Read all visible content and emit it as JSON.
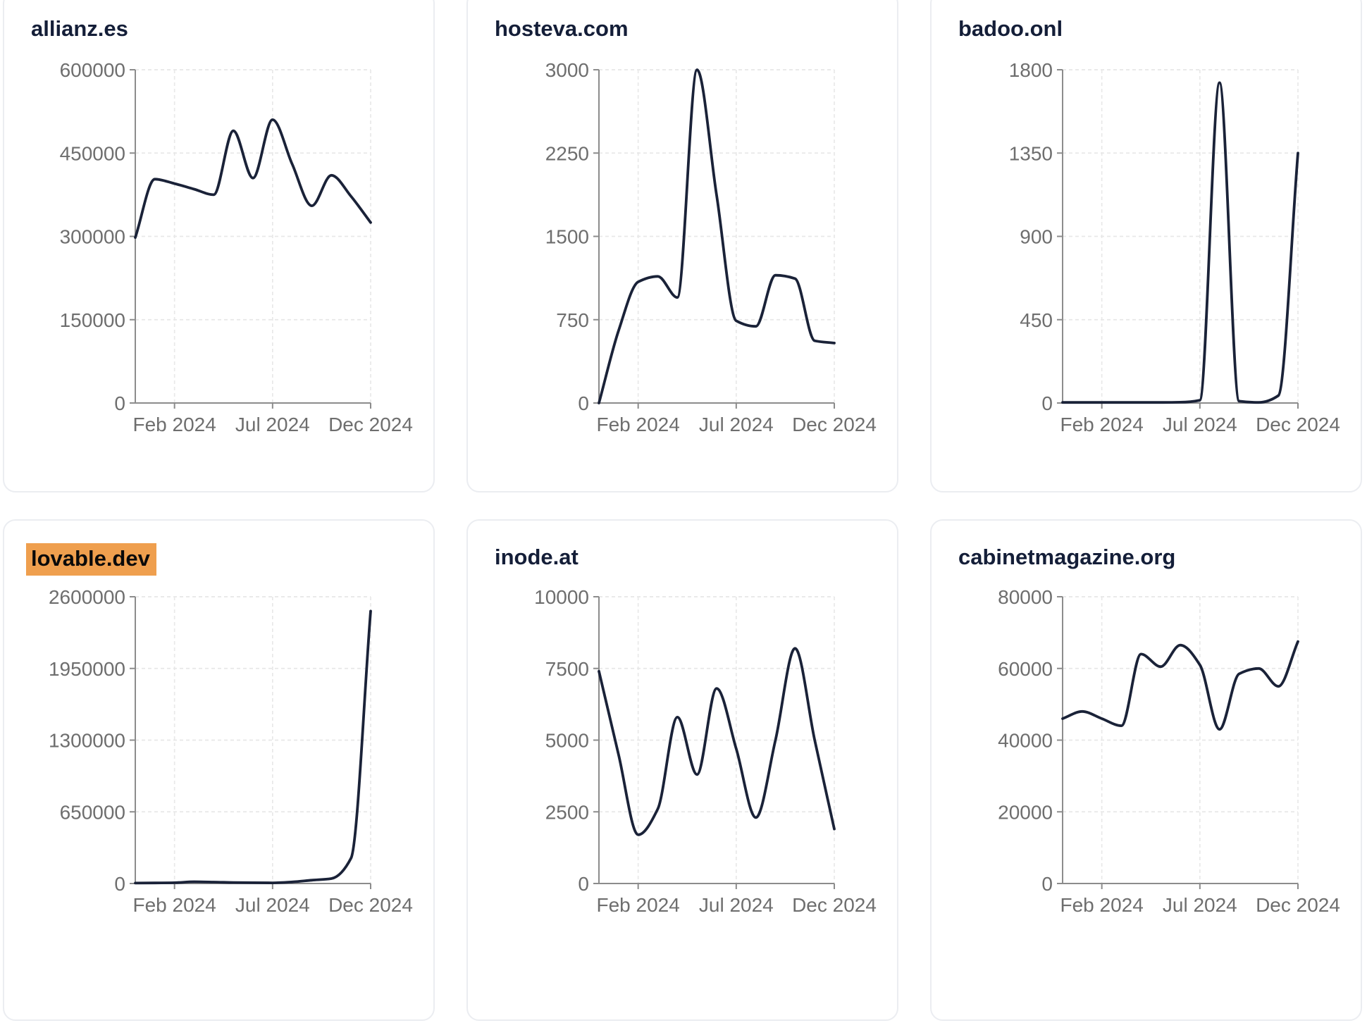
{
  "page": {
    "background": "#ffffff"
  },
  "colors": {
    "background": "#ffffff",
    "card_border": "#ebedf1",
    "title": "#141e38",
    "line": "#1a2238",
    "axis": "#8c8c8c",
    "grid": "#e8e8e8",
    "tick_label": "#6e6e6e",
    "highlight": "#ef9f4e"
  },
  "x_axis": {
    "tick_indices": [
      2,
      7,
      12
    ],
    "tick_labels": [
      "Feb 2024",
      "Jul 2024",
      "Dec 2024"
    ]
  },
  "chart_data": [
    {
      "type": "line",
      "title": "allianz.es",
      "highlighted": false,
      "xlabel": "",
      "ylabel": "",
      "x": [
        "Dec 2023",
        "Jan 2024",
        "Feb 2024",
        "Mar 2024",
        "Apr 2024",
        "May 2024",
        "Jun 2024",
        "Jul 2024",
        "Aug 2024",
        "Sep 2024",
        "Oct 2024",
        "Nov 2024",
        "Dec 2024"
      ],
      "x_tick_labels": [
        "Feb 2024",
        "Jul 2024",
        "Dec 2024"
      ],
      "values": [
        298000,
        403000,
        395000,
        385000,
        375000,
        490000,
        405000,
        510000,
        430000,
        355000,
        410000,
        372000,
        325000
      ],
      "y_ticks": [
        0,
        150000,
        300000,
        450000,
        600000
      ],
      "ylim": [
        0,
        600000
      ],
      "grid": true,
      "legend": null
    },
    {
      "type": "line",
      "title": "hosteva.com",
      "highlighted": false,
      "xlabel": "",
      "ylabel": "",
      "x": [
        "Dec 2023",
        "Jan 2024",
        "Feb 2024",
        "Mar 2024",
        "Apr 2024",
        "May 2024",
        "Jun 2024",
        "Jul 2024",
        "Aug 2024",
        "Sep 2024",
        "Oct 2024",
        "Nov 2024",
        "Dec 2024"
      ],
      "x_tick_labels": [
        "Feb 2024",
        "Jul 2024",
        "Dec 2024"
      ],
      "values": [
        0,
        650,
        1090,
        1140,
        950,
        3000,
        1870,
        740,
        690,
        1150,
        1120,
        560,
        540
      ],
      "y_ticks": [
        0,
        750,
        1500,
        2250,
        3000
      ],
      "ylim": [
        0,
        3000
      ],
      "grid": true,
      "legend": null
    },
    {
      "type": "line",
      "title": "badoo.onl",
      "highlighted": false,
      "xlabel": "",
      "ylabel": "",
      "x": [
        "Dec 2023",
        "Jan 2024",
        "Feb 2024",
        "Mar 2024",
        "Apr 2024",
        "May 2024",
        "Jun 2024",
        "Jul 2024",
        "Aug 2024",
        "Sep 2024",
        "Oct 2024",
        "Nov 2024",
        "Dec 2024"
      ],
      "x_tick_labels": [
        "Feb 2024",
        "Jul 2024",
        "Dec 2024"
      ],
      "values": [
        3,
        3,
        3,
        3,
        3,
        3,
        4,
        15,
        1730,
        10,
        3,
        40,
        1350
      ],
      "y_ticks": [
        0,
        450,
        900,
        1350,
        1800
      ],
      "ylim": [
        0,
        1800
      ],
      "grid": true,
      "legend": null
    },
    {
      "type": "line",
      "title": "lovable.dev",
      "highlighted": true,
      "xlabel": "",
      "ylabel": "",
      "x": [
        "Dec 2023",
        "Jan 2024",
        "Feb 2024",
        "Mar 2024",
        "Apr 2024",
        "May 2024",
        "Jun 2024",
        "Jul 2024",
        "Aug 2024",
        "Sep 2024",
        "Oct 2024",
        "Nov 2024",
        "Dec 2024"
      ],
      "x_tick_labels": [
        "Feb 2024",
        "Jul 2024",
        "Dec 2024"
      ],
      "values": [
        4000,
        5000,
        7000,
        16000,
        13000,
        9000,
        7000,
        6000,
        14000,
        30000,
        45000,
        230000,
        2470000
      ],
      "y_ticks": [
        0,
        650000,
        1300000,
        1950000,
        2600000
      ],
      "ylim": [
        0,
        2600000
      ],
      "grid": true,
      "legend": null
    },
    {
      "type": "line",
      "title": "inode.at",
      "highlighted": false,
      "xlabel": "",
      "ylabel": "",
      "x": [
        "Dec 2023",
        "Jan 2024",
        "Feb 2024",
        "Mar 2024",
        "Apr 2024",
        "May 2024",
        "Jun 2024",
        "Jul 2024",
        "Aug 2024",
        "Sep 2024",
        "Oct 2024",
        "Nov 2024",
        "Dec 2024"
      ],
      "x_tick_labels": [
        "Feb 2024",
        "Jul 2024",
        "Dec 2024"
      ],
      "values": [
        7400,
        4500,
        1700,
        2600,
        5800,
        3800,
        6800,
        4700,
        2300,
        5000,
        8200,
        5000,
        1900
      ],
      "y_ticks": [
        0,
        2500,
        5000,
        7500,
        10000
      ],
      "ylim": [
        0,
        10000
      ],
      "grid": true,
      "legend": null
    },
    {
      "type": "line",
      "title": "cabinetmagazine.org",
      "highlighted": false,
      "xlabel": "",
      "ylabel": "",
      "x": [
        "Dec 2023",
        "Jan 2024",
        "Feb 2024",
        "Mar 2024",
        "Apr 2024",
        "May 2024",
        "Jun 2024",
        "Jul 2024",
        "Aug 2024",
        "Sep 2024",
        "Oct 2024",
        "Nov 2024",
        "Dec 2024"
      ],
      "x_tick_labels": [
        "Feb 2024",
        "Jul 2024",
        "Dec 2024"
      ],
      "values": [
        46000,
        48000,
        46000,
        44000,
        64000,
        60500,
        66500,
        61000,
        43000,
        58500,
        60000,
        55000,
        67500
      ],
      "y_ticks": [
        0,
        20000,
        40000,
        60000,
        80000
      ],
      "ylim": [
        0,
        80000
      ],
      "grid": true,
      "legend": null
    }
  ]
}
